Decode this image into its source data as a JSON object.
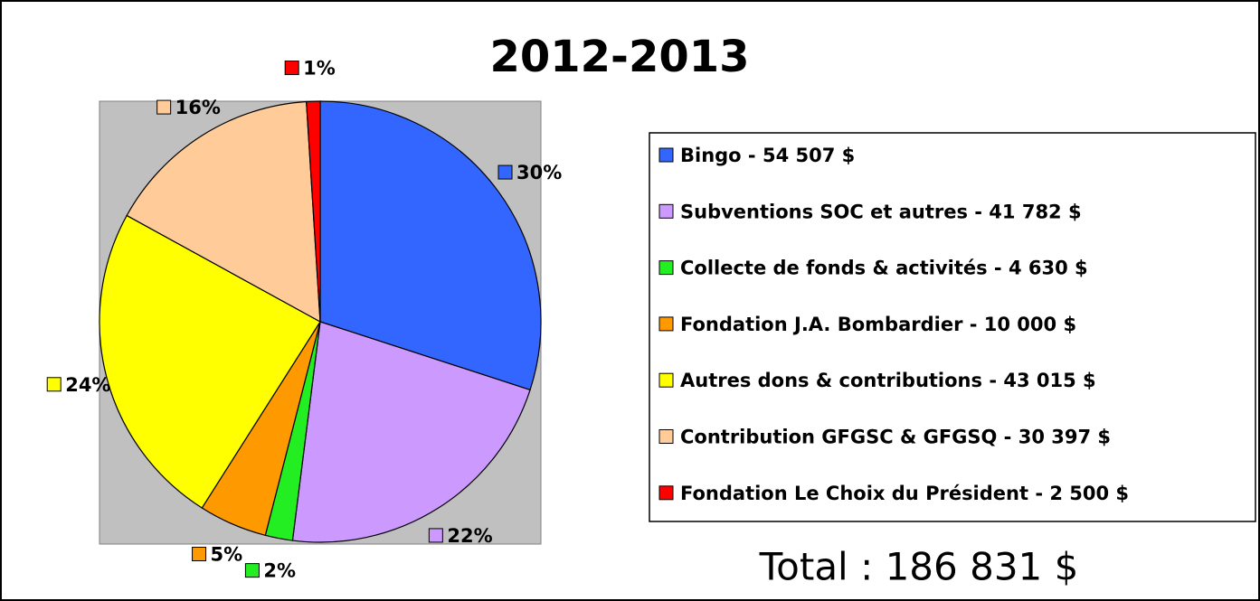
{
  "chart_data": {
    "type": "pie",
    "title": "2012-2013",
    "categories": [
      "Bingo - 54 507 $",
      "Subventions SOC et autres - 41 782 $",
      "Collecte de fonds & activités - 4 630 $",
      "Fondation J.A. Bombardier - 10 000 $",
      "Autres dons & contributions - 43 015 $",
      "Contribution GFGSC & GFGSQ - 30 397 $",
      "Fondation Le Choix du Président - 2 500 $"
    ],
    "values": [
      30,
      22,
      2,
      5,
      24,
      16,
      1
    ],
    "value_labels": [
      "30%",
      "22%",
      "2%",
      "5%",
      "24%",
      "16%",
      "1%"
    ],
    "colors": [
      "#3366ff",
      "#cc99ff",
      "#22ee22",
      "#ff9900",
      "#ffff00",
      "#ffcc99",
      "#ff0000"
    ],
    "annotation": "Total : 186 831 $",
    "legend": "right"
  }
}
